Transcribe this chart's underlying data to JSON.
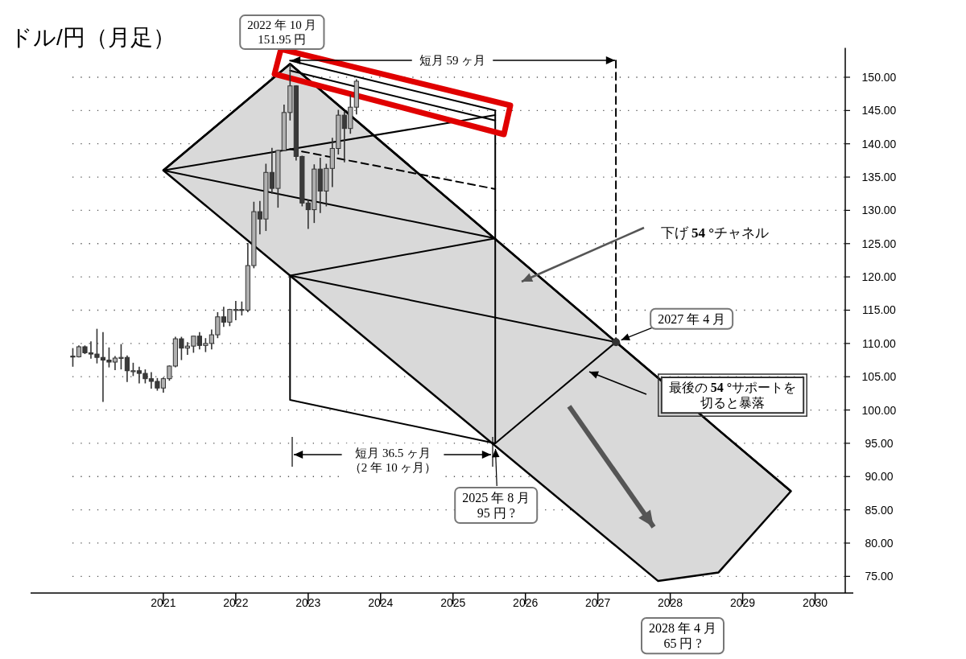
{
  "chart_data": {
    "type": "candlestick",
    "title": "ドル/円（月足）",
    "xlim": [
      "2019-03",
      "2030-06"
    ],
    "ylim": [
      72.5,
      154.4
    ],
    "xticks": [
      {
        "value": "2021",
        "label": "2021"
      },
      {
        "value": "2022",
        "label": "2022"
      },
      {
        "value": "2023",
        "label": "2023"
      },
      {
        "value": "2024",
        "label": "2024"
      },
      {
        "value": "2025",
        "label": "2025"
      },
      {
        "value": "2026",
        "label": "2026"
      },
      {
        "value": "2027",
        "label": "2027"
      },
      {
        "value": "2028",
        "label": "2028"
      },
      {
        "value": "2029",
        "label": "2029"
      },
      {
        "value": "2030",
        "label": "2030"
      }
    ],
    "yticks": [
      {
        "value": 75,
        "label": "75.00"
      },
      {
        "value": 80,
        "label": "80.00"
      },
      {
        "value": 85,
        "label": "85.00"
      },
      {
        "value": 90,
        "label": "90.00"
      },
      {
        "value": 95,
        "label": "95.00"
      },
      {
        "value": 100,
        "label": "100.00"
      },
      {
        "value": 105,
        "label": "105.00"
      },
      {
        "value": 110,
        "label": "110.00"
      },
      {
        "value": 115,
        "label": "115.00"
      },
      {
        "value": 120,
        "label": "120.00"
      },
      {
        "value": 125,
        "label": "125.00"
      },
      {
        "value": 130,
        "label": "130.00"
      },
      {
        "value": 135,
        "label": "135.00"
      },
      {
        "value": 140,
        "label": "140.00"
      },
      {
        "value": 145,
        "label": "145.00"
      },
      {
        "value": 150,
        "label": "150.00"
      }
    ],
    "grid": "y",
    "series": [
      {
        "type": "line",
        "color": "#000000",
        "x": [
          "2021-01",
          "2022-10",
          "2027-11",
          "2028-09",
          "2029-09"
        ],
        "values": [
          136,
          152,
          104.8,
          97.0,
          87.8
        ],
        "lower": [
          136,
          120.2,
          74.3,
          75.6,
          87.8
        ],
        "upper": [
          136,
          152,
          104.8,
          97.0,
          87.8
        ]
      },
      {
        "type": "line",
        "color": "#000000",
        "x": [
          "2021-01",
          "2025-08"
        ],
        "values": [
          136,
          144.3
        ]
      },
      {
        "type": "line",
        "color": "#000000",
        "x": [
          "2021-01",
          "2025-08"
        ],
        "values": [
          136,
          125.8
        ]
      },
      {
        "type": "line",
        "color": "#000000",
        "x": [
          "2022-10",
          "2025-08"
        ],
        "values": [
          120.2,
          125.8
        ]
      },
      {
        "type": "line",
        "color": "#000000",
        "x": [
          "2022-10",
          "2027-04"
        ],
        "values": [
          120.2,
          110.2
        ]
      },
      {
        "type": "line",
        "color": "#000000",
        "x": [
          "2022-10",
          "2022-10",
          "2025-08"
        ],
        "values": [
          120.2,
          101.5,
          95
        ]
      },
      {
        "type": "line",
        "color": "#000000",
        "x": [
          "2022-10",
          "2025-08",
          "2025-08"
        ],
        "values": [
          152.5,
          145.0,
          95
        ]
      },
      {
        "type": "line",
        "color": "#000000",
        "x": [
          "2022-10",
          "2025-08"
        ],
        "values": [
          151.0,
          143.5
        ]
      },
      {
        "type": "line",
        "color": "#000000",
        "x": [
          "2025-08",
          "2027-04"
        ],
        "values": [
          95,
          110.2
        ]
      },
      {
        "type": "line",
        "color": "#000000",
        "line_style": "dashed",
        "x": [
          "2022-10",
          "2025-08"
        ],
        "values": [
          139.2,
          133.2
        ]
      },
      {
        "type": "line",
        "color": "#000000",
        "line_style": "dashed",
        "x": [
          "2027-04",
          "2027-04"
        ],
        "values": [
          152.5,
          110.2
        ]
      },
      {
        "type": "scatter",
        "color": "#333333",
        "marker": "circle",
        "x": [
          "2027-04"
        ],
        "values": [
          110.2
        ]
      },
      {
        "type": "candlestick",
        "color": "#333333",
        "x": [
          "2019-10",
          "2019-11",
          "2019-12",
          "2020-01",
          "2020-02",
          "2020-03",
          "2020-04",
          "2020-05",
          "2020-06",
          "2020-07",
          "2020-08",
          "2020-09",
          "2020-10",
          "2020-11",
          "2020-12",
          "2021-01",
          "2021-02",
          "2021-03",
          "2021-04",
          "2021-05",
          "2021-06",
          "2021-07",
          "2021-08",
          "2021-09",
          "2021-10",
          "2021-11",
          "2021-12",
          "2022-01",
          "2022-02",
          "2022-03",
          "2022-04",
          "2022-05",
          "2022-06",
          "2022-07",
          "2022-08",
          "2022-09",
          "2022-10",
          "2022-11",
          "2022-12",
          "2023-01",
          "2023-02",
          "2023-03",
          "2023-04",
          "2023-05",
          "2023-06",
          "2023-07",
          "2023-08",
          "2023-09"
        ],
        "ohlc": [
          [
            108.1,
            109.3,
            106.5,
            108.0
          ],
          [
            108.0,
            109.7,
            107.9,
            109.5
          ],
          [
            109.5,
            109.7,
            108.4,
            108.6
          ],
          [
            108.6,
            110.3,
            107.7,
            108.4
          ],
          [
            108.4,
            112.2,
            107.0,
            107.9
          ],
          [
            107.9,
            111.7,
            101.2,
            107.5
          ],
          [
            107.5,
            109.4,
            106.4,
            107.2
          ],
          [
            107.2,
            108.1,
            106.0,
            107.8
          ],
          [
            107.8,
            109.9,
            106.1,
            107.9
          ],
          [
            107.9,
            108.2,
            104.2,
            105.9
          ],
          [
            105.9,
            107.1,
            105.1,
            105.9
          ],
          [
            105.9,
            106.5,
            104.0,
            105.5
          ],
          [
            105.5,
            106.1,
            104.0,
            104.7
          ],
          [
            104.7,
            105.7,
            103.2,
            104.3
          ],
          [
            104.3,
            104.8,
            102.9,
            103.3
          ],
          [
            103.3,
            104.9,
            102.6,
            104.7
          ],
          [
            104.7,
            106.7,
            104.4,
            106.6
          ],
          [
            106.6,
            111.0,
            106.4,
            110.7
          ],
          [
            110.7,
            111.0,
            107.5,
            109.3
          ],
          [
            109.3,
            110.2,
            108.3,
            109.6
          ],
          [
            109.6,
            111.1,
            108.6,
            111.1
          ],
          [
            111.1,
            111.7,
            109.1,
            109.7
          ],
          [
            109.7,
            110.8,
            108.7,
            110.0
          ],
          [
            110.0,
            112.1,
            109.1,
            111.3
          ],
          [
            111.3,
            114.7,
            110.8,
            114.0
          ],
          [
            114.0,
            115.5,
            112.5,
            113.2
          ],
          [
            113.2,
            115.2,
            112.6,
            115.1
          ],
          [
            115.1,
            116.4,
            113.5,
            115.1
          ],
          [
            115.1,
            116.3,
            114.2,
            115.0
          ],
          [
            115.0,
            125.1,
            114.7,
            121.7
          ],
          [
            121.7,
            131.3,
            121.3,
            129.8
          ],
          [
            129.8,
            131.4,
            126.4,
            128.7
          ],
          [
            128.7,
            137.0,
            126.9,
            135.7
          ],
          [
            135.7,
            139.4,
            132.5,
            133.3
          ],
          [
            133.3,
            139.1,
            130.4,
            139.0
          ],
          [
            139.0,
            145.9,
            138.9,
            144.7
          ],
          [
            144.7,
            151.95,
            143.5,
            148.7
          ],
          [
            148.7,
            148.8,
            137.5,
            138.1
          ],
          [
            138.1,
            138.2,
            130.6,
            131.1
          ],
          [
            131.1,
            131.6,
            127.2,
            130.1
          ],
          [
            130.1,
            136.9,
            128.1,
            136.2
          ],
          [
            136.2,
            137.9,
            129.6,
            132.9
          ],
          [
            132.9,
            137.0,
            130.6,
            136.3
          ],
          [
            136.3,
            140.9,
            133.5,
            139.3
          ],
          [
            139.3,
            145.1,
            138.4,
            144.3
          ],
          [
            144.3,
            144.9,
            137.2,
            142.3
          ],
          [
            142.3,
            147.4,
            141.5,
            145.5
          ],
          [
            145.5,
            149.7,
            144.4,
            149.4
          ]
        ],
        "colors": [
          "#3a3a3a",
          "#b0b0b0",
          "#3a3a3a",
          "#3a3a3a",
          "#3a3a3a",
          "#3a3a3a",
          "#3a3a3a",
          "#b0b0b0",
          "#b0b0b0",
          "#3a3a3a",
          "#b0b0b0",
          "#3a3a3a",
          "#3a3a3a",
          "#3a3a3a",
          "#3a3a3a",
          "#b0b0b0",
          "#b0b0b0",
          "#b0b0b0",
          "#3a3a3a",
          "#b0b0b0",
          "#b0b0b0",
          "#3a3a3a",
          "#b0b0b0",
          "#b0b0b0",
          "#b0b0b0",
          "#3a3a3a",
          "#b0b0b0",
          "#b0b0b0",
          "#3a3a3a",
          "#b0b0b0",
          "#b0b0b0",
          "#3a3a3a",
          "#b0b0b0",
          "#3a3a3a",
          "#b0b0b0",
          "#b0b0b0",
          "#b0b0b0",
          "#3a3a3a",
          "#3a3a3a",
          "#3a3a3a",
          "#b0b0b0",
          "#3a3a3a",
          "#b0b0b0",
          "#b0b0b0",
          "#b0b0b0",
          "#3a3a3a",
          "#b0b0b0",
          "#b0b0b0"
        ]
      }
    ],
    "annotations": [
      {
        "text": "2022 年 10 月\n151.95 円",
        "x": "2022-10",
        "y": 151.95
      },
      "短月 59 ヶ月",
      "下げ **54 °**チャネル",
      {
        "text": "2027 年 4 月",
        "x": "2027-04",
        "y": 110.2
      },
      "最後の **54 °**サポートを切ると暴落",
      "短月 36.5 ヶ月（2 年 10 ヶ月）",
      {
        "text": "2025 年 8 月\n95 円 ?",
        "x": "2025-08",
        "y": 95
      },
      "2028 年 4 月\n65 円 ?"
    ]
  }
}
